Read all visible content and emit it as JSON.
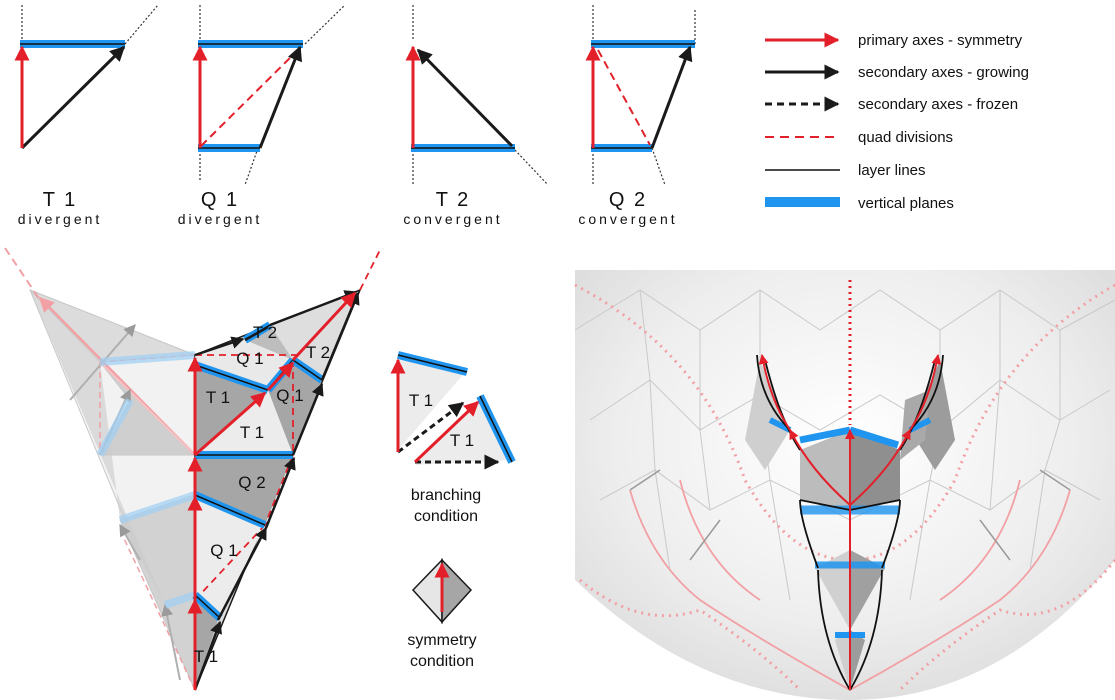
{
  "colors": {
    "primary_red": "#e3202a",
    "secondary_black": "#1a1a1a",
    "quad_division_red": "#e3202a",
    "vertical_plane_blue": "#1f95ef",
    "dark_fill": "#a6a6a6",
    "light_fill": "#e6e6e6"
  },
  "legend": {
    "primary": "primary axes - symmetry",
    "growing": "secondary axes - growing",
    "frozen": "secondary axes - frozen",
    "quad": "quad divisions",
    "layer": "layer lines",
    "planes": "vertical planes"
  },
  "types": [
    {
      "name": "T 1",
      "sub": "divergent"
    },
    {
      "name": "Q 1",
      "sub": "divergent"
    },
    {
      "name": "T 2",
      "sub": "convergent"
    },
    {
      "name": "Q 2",
      "sub": "convergent"
    }
  ],
  "main_labels": [
    "T 2",
    "Q 1",
    "T 2",
    "T 1",
    "Q 1",
    "T 1",
    "Q 2",
    "Q 1",
    "T 1"
  ],
  "branching": {
    "labels": [
      "T 1",
      "T 1"
    ],
    "caption_1": "branching",
    "caption_2": "condition"
  },
  "symmetry": {
    "caption_1": "symmetry",
    "caption_2": "condition"
  }
}
